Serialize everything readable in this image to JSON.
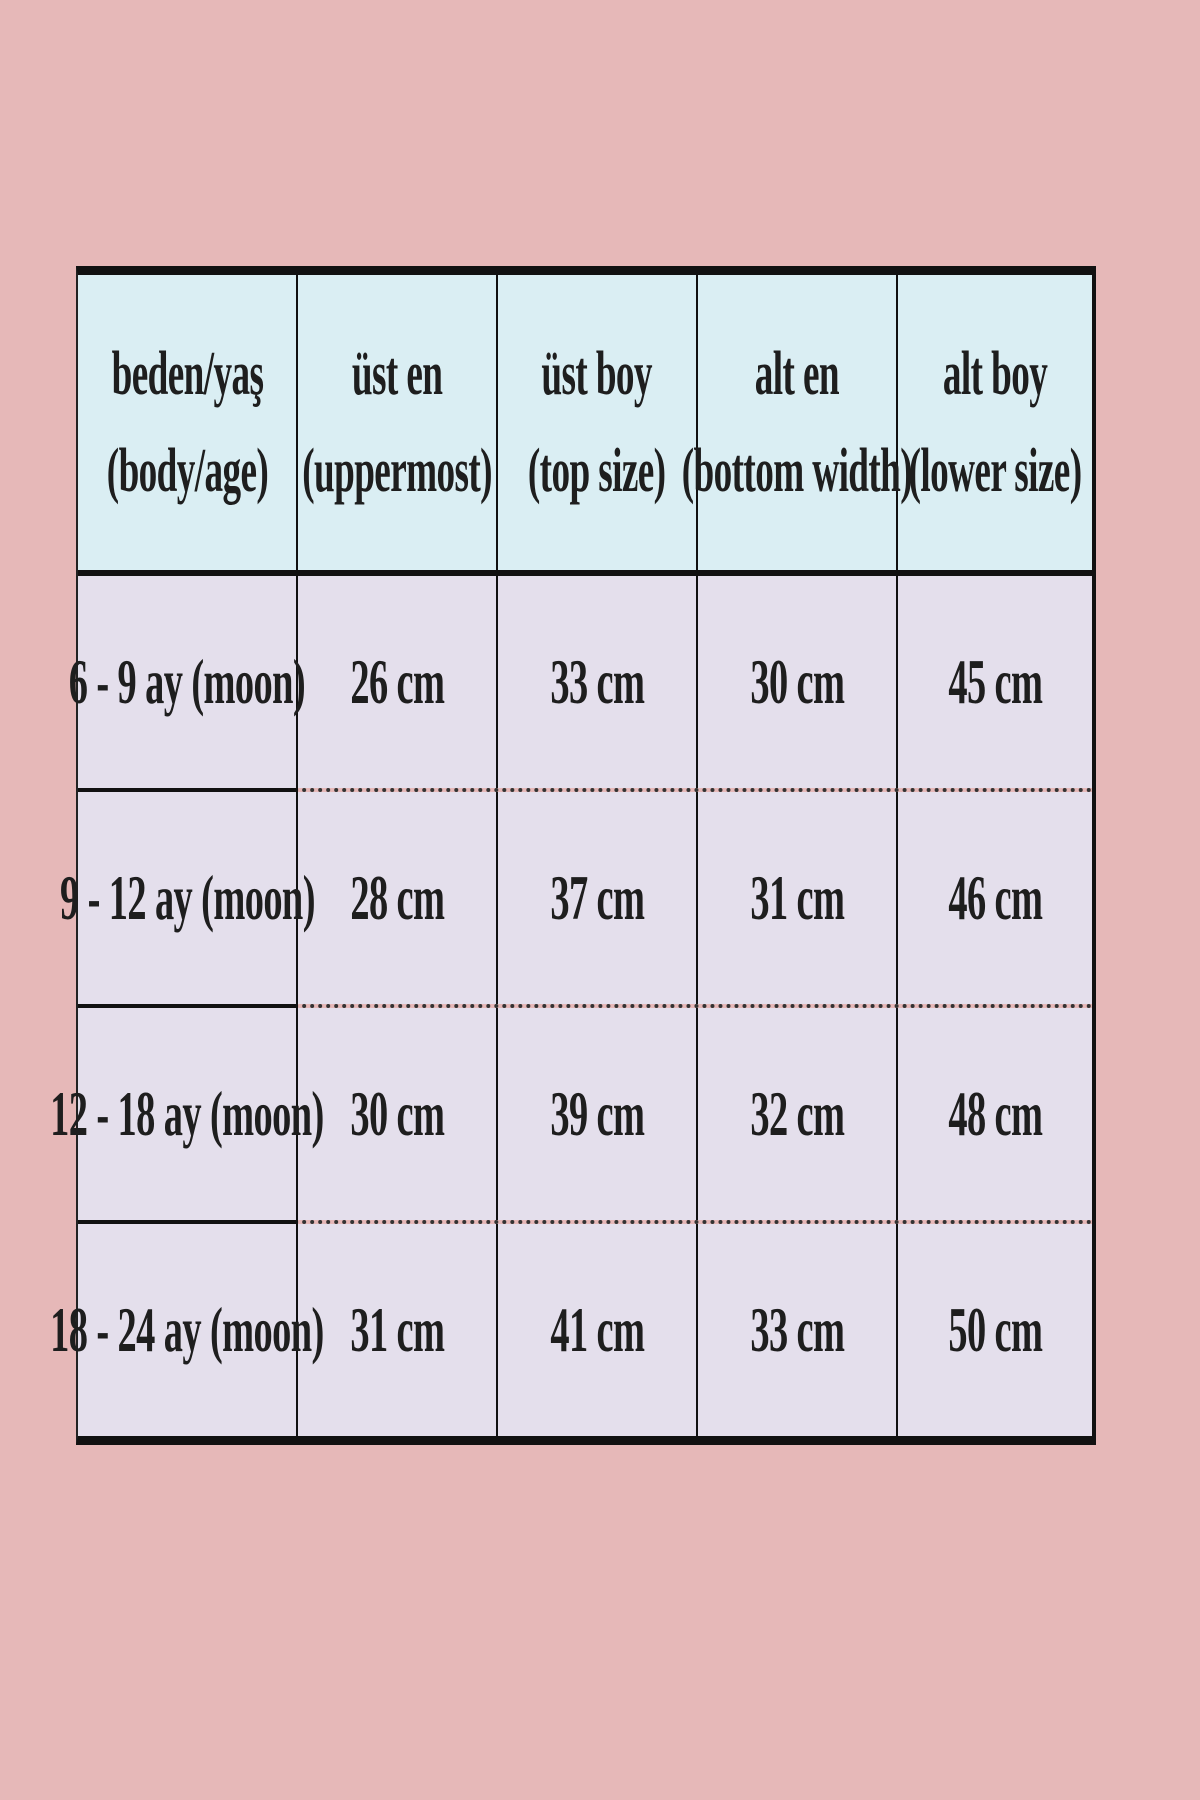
{
  "table": {
    "headers": [
      {
        "line1": "beden/yaş",
        "line2": "(body/age)"
      },
      {
        "line1": "üst en",
        "line2": "(uppermost)"
      },
      {
        "line1": "üst boy",
        "line2": "(top size)"
      },
      {
        "line1": "alt en",
        "line2": "(bottom width)"
      },
      {
        "line1": "alt boy",
        "line2": "(lower size)"
      }
    ],
    "rows": [
      [
        "6 - 9 ay (moon)",
        "26 cm",
        "33 cm",
        "30 cm",
        "45 cm"
      ],
      [
        "9 - 12 ay (moon)",
        "28 cm",
        "37 cm",
        "31 cm",
        "46 cm"
      ],
      [
        "12 - 18 ay (moon)",
        "30 cm",
        "39 cm",
        "32 cm",
        "48 cm"
      ],
      [
        "18 - 24 ay (moon)",
        "31 cm",
        "41 cm",
        "33 cm",
        "50 cm"
      ]
    ],
    "colors": {
      "background": "#e6b8b8",
      "header": "#daeef3",
      "body": "#e4dfec",
      "border": "#111111"
    }
  }
}
